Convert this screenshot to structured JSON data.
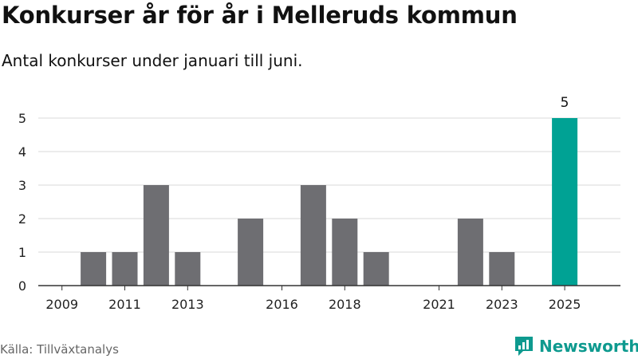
{
  "title": "Konkurser år för år i Melleruds kommun",
  "subtitle": "Antal konkurser under januari till juni.",
  "source": "Källa: Tillväxtanalys",
  "brand": "Newsworthy",
  "colors": {
    "bar": "#6e6e72",
    "highlight": "#00a294",
    "grid": "#d9d9d9",
    "axis": "#333333",
    "brand": "#0e9a8f"
  },
  "chart_data": {
    "type": "bar",
    "title": "Konkurser år för år i Melleruds kommun",
    "subtitle": "Antal konkurser under januari till juni.",
    "categories": [
      "2009",
      "2010",
      "2011",
      "2012",
      "2013",
      "2014",
      "2015",
      "2016",
      "2017",
      "2018",
      "2019",
      "2020",
      "2021",
      "2022",
      "2023",
      "2024",
      "2025"
    ],
    "values": [
      0,
      1,
      1,
      3,
      1,
      0,
      2,
      0,
      3,
      2,
      1,
      0,
      0,
      2,
      1,
      0,
      5
    ],
    "x_tick_labels": [
      "2009",
      "2011",
      "2013",
      "2016",
      "2018",
      "2021",
      "2023",
      "2025"
    ],
    "highlight_category": "2025",
    "data_labels": [
      {
        "category": "2025",
        "text": "5"
      }
    ],
    "ylim": [
      0,
      5
    ],
    "y_ticks": [
      0,
      1,
      2,
      3,
      4,
      5
    ],
    "grid": true,
    "legend": "none",
    "xlabel": "",
    "ylabel": ""
  }
}
